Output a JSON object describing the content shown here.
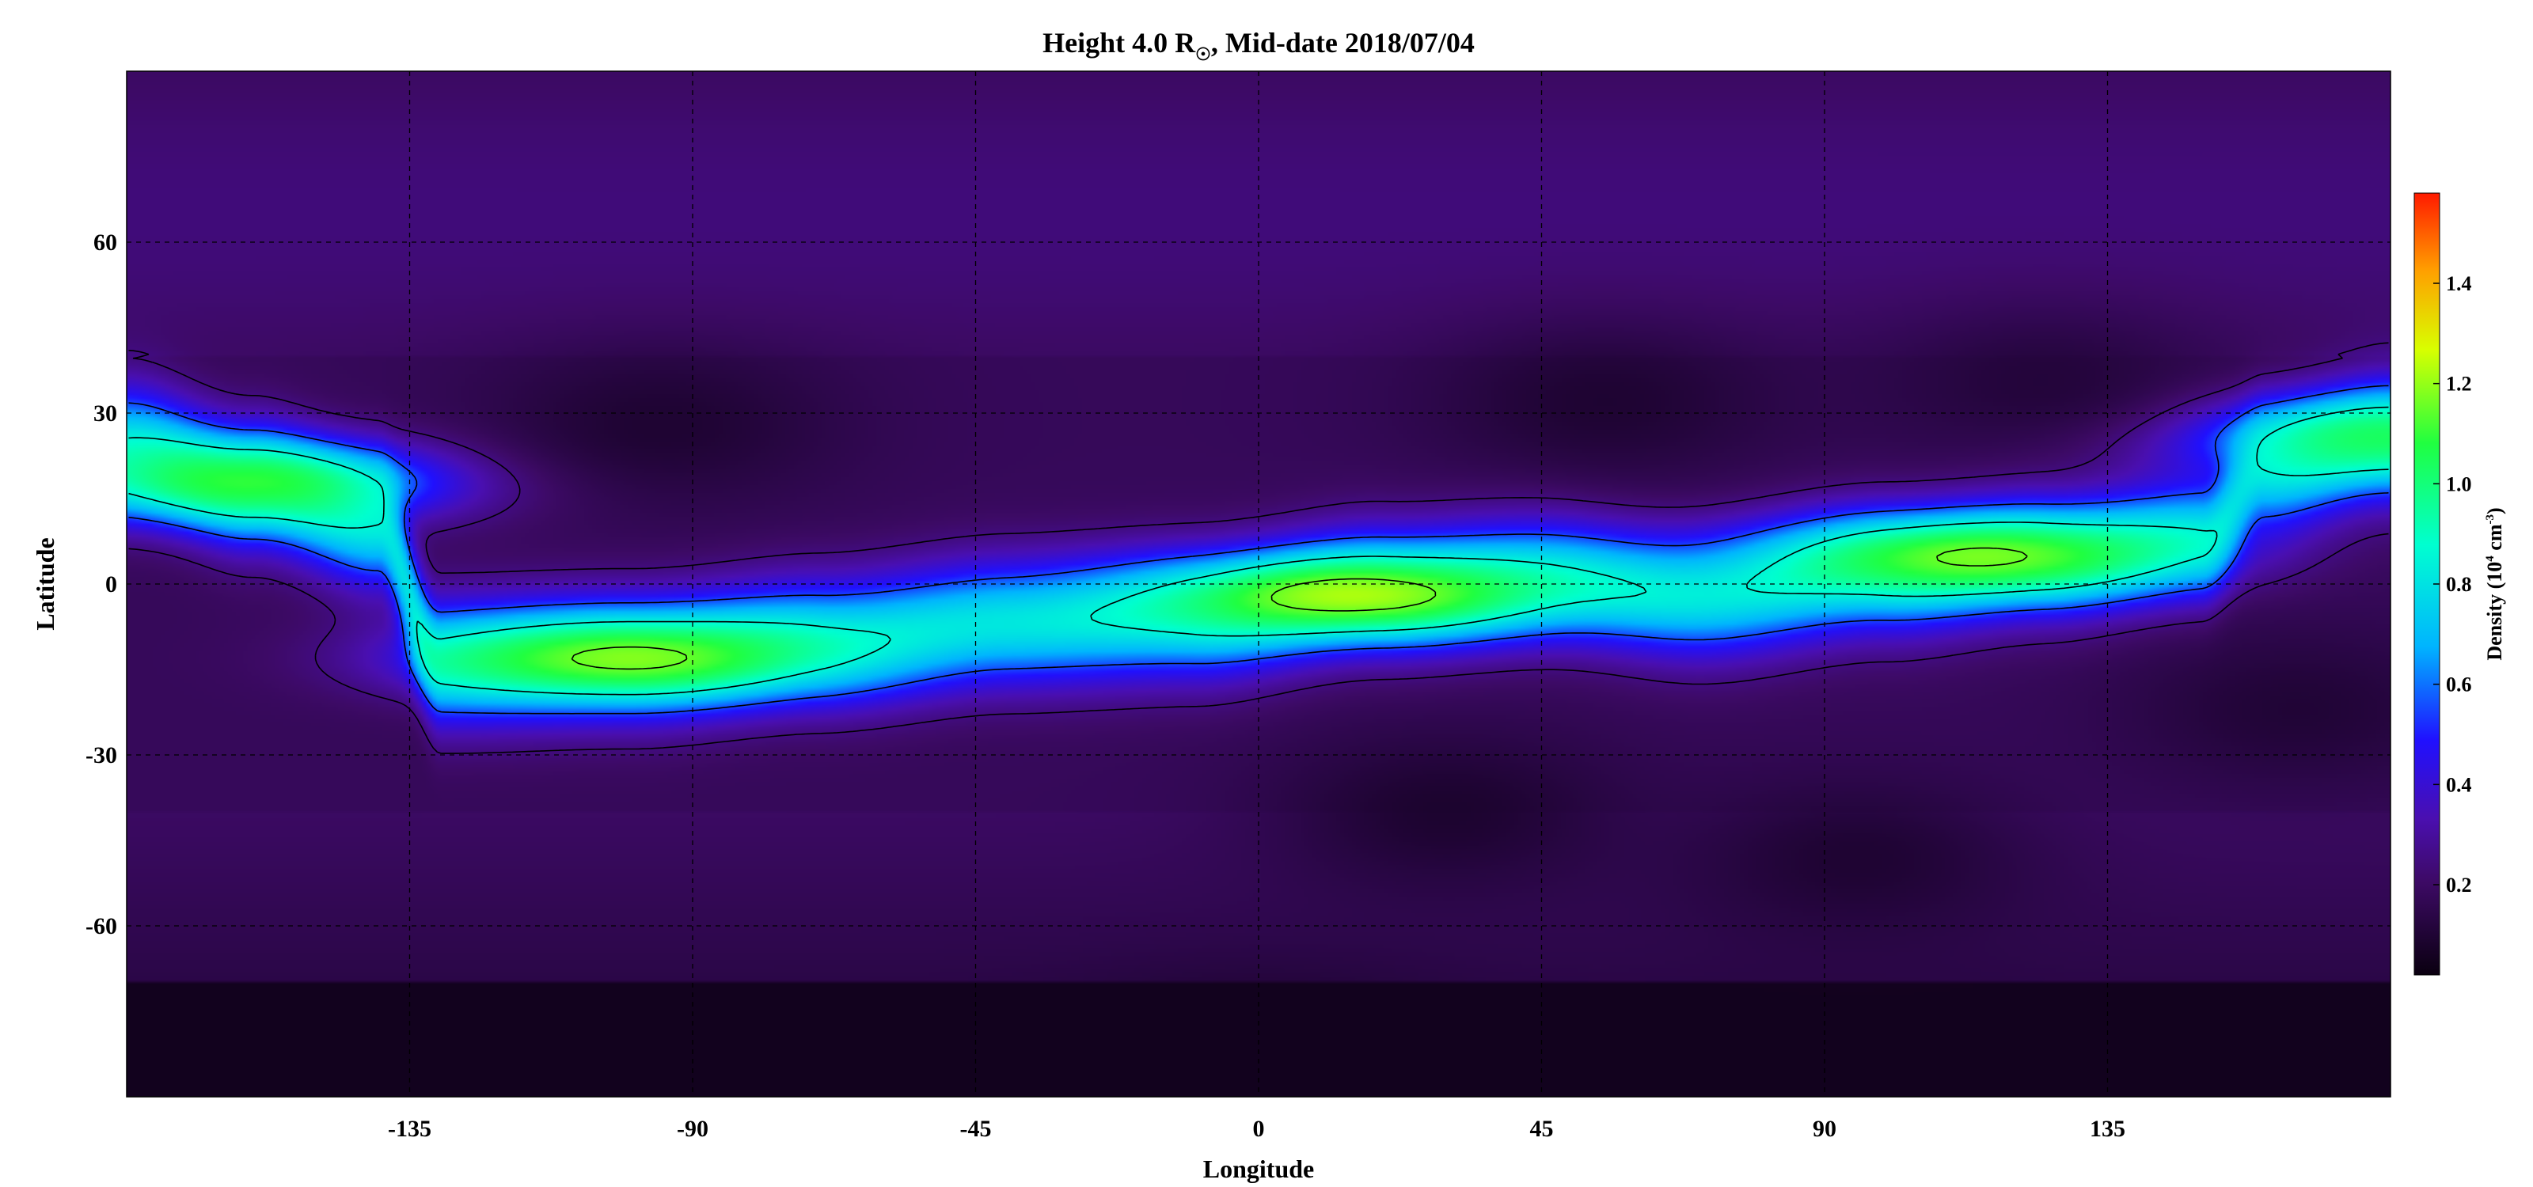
{
  "chart_data": {
    "type": "heatmap",
    "title": {
      "prefix": "Height 4.0 R",
      "subscript": "☉",
      "suffix": ", Mid-date 2018/07/04"
    },
    "xlabel": "Longitude",
    "ylabel": "Latitude",
    "xlim": [
      -180,
      180
    ],
    "ylim": [
      -90,
      90
    ],
    "xticks": [
      -135,
      -90,
      -45,
      0,
      45,
      90,
      135
    ],
    "yticks": [
      60,
      30,
      0,
      -30,
      -60
    ],
    "grid": true,
    "colorbar": {
      "label_prefix": "Density (10",
      "label_exp1": "4",
      "label_mid": " cm",
      "label_exp2": "-3",
      "label_suffix": ")",
      "range": [
        0.02,
        1.58
      ],
      "ticks": [
        0.2,
        0.4,
        0.6,
        0.8,
        1.0,
        1.2,
        1.4
      ],
      "tick_labels": [
        "0.2",
        "0.4",
        "0.6",
        "0.8",
        "1.0",
        "1.2",
        "1.4"
      ],
      "colormap_stops": [
        {
          "value": 0.0,
          "color": "#0a0010"
        },
        {
          "value": 0.12,
          "color": "#3d0a66"
        },
        {
          "value": 0.2,
          "color": "#4a0fb0"
        },
        {
          "value": 0.3,
          "color": "#2010ff"
        },
        {
          "value": 0.42,
          "color": "#00b4ff"
        },
        {
          "value": 0.55,
          "color": "#00ffd0"
        },
        {
          "value": 0.68,
          "color": "#20ff40"
        },
        {
          "value": 0.8,
          "color": "#d8ff00"
        },
        {
          "value": 0.9,
          "color": "#ffa000"
        },
        {
          "value": 1.0,
          "color": "#ff1a00"
        }
      ]
    },
    "streamer_belt_centerline": [
      {
        "lon": -180,
        "lat": 24
      },
      {
        "lon": -160,
        "lat": 17
      },
      {
        "lon": -140,
        "lat": 10
      },
      {
        "lon": -130,
        "lat": -14
      },
      {
        "lon": -100,
        "lat": -13
      },
      {
        "lon": -70,
        "lat": -10
      },
      {
        "lon": -40,
        "lat": -7
      },
      {
        "lon": -10,
        "lat": -6
      },
      {
        "lon": 20,
        "lat": -1
      },
      {
        "lon": 45,
        "lat": 1
      },
      {
        "lon": 70,
        "lat": -2
      },
      {
        "lon": 100,
        "lat": 2
      },
      {
        "lon": 125,
        "lat": 5
      },
      {
        "lon": 150,
        "lat": 8
      },
      {
        "lon": 160,
        "lat": 20
      },
      {
        "lon": 180,
        "lat": 25
      }
    ],
    "density_features": [
      {
        "name": "peak-west",
        "lon": -100,
        "lat": -13,
        "value": 1.25
      },
      {
        "name": "peak-central",
        "lon": 15,
        "lat": -2,
        "value": 1.3
      },
      {
        "name": "peak-east",
        "lon": 115,
        "lat": 5,
        "value": 1.25
      },
      {
        "name": "peak-far-west",
        "lon": -160,
        "lat": 18,
        "value": 1.15
      },
      {
        "name": "peak-far-east",
        "lon": 175,
        "lat": 26,
        "value": 1.1
      },
      {
        "name": "south-polar-low",
        "lon": 0,
        "lat": -85,
        "value": 0.05
      },
      {
        "name": "void-nw",
        "lon": -95,
        "lat": 28,
        "value": 0.08
      },
      {
        "name": "void-n",
        "lon": 55,
        "lat": 32,
        "value": 0.08
      },
      {
        "name": "void-ne",
        "lon": 125,
        "lat": 35,
        "value": 0.1
      },
      {
        "name": "void-s",
        "lon": 30,
        "lat": -40,
        "value": 0.07
      },
      {
        "name": "void-se",
        "lon": 95,
        "lat": -48,
        "value": 0.08
      },
      {
        "name": "void-se2",
        "lon": 165,
        "lat": -22,
        "value": 0.09
      }
    ]
  }
}
